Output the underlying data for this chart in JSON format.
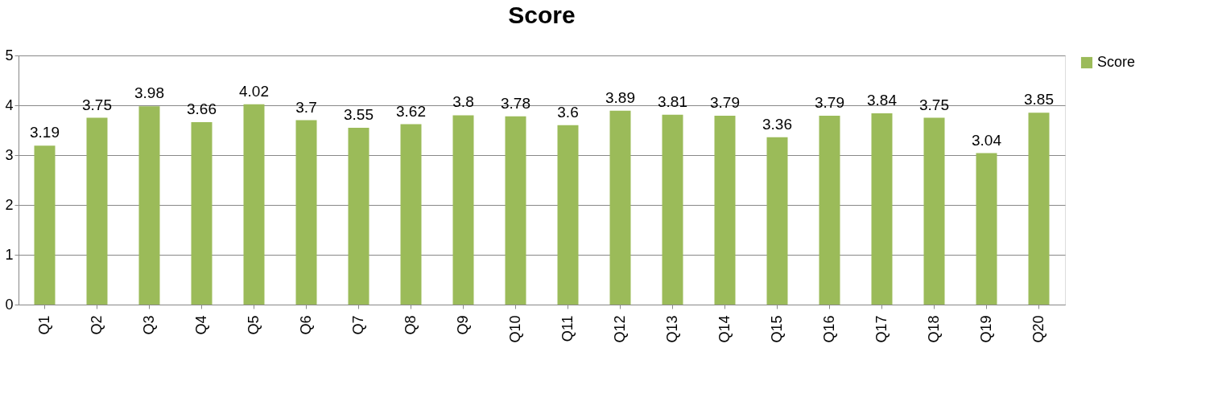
{
  "chart_data": {
    "type": "bar",
    "title": "Score",
    "categories": [
      "Q1",
      "Q2",
      "Q3",
      "Q4",
      "Q5",
      "Q6",
      "Q7",
      "Q8",
      "Q9",
      "Q10",
      "Q11",
      "Q12",
      "Q13",
      "Q14",
      "Q15",
      "Q16",
      "Q17",
      "Q18",
      "Q19",
      "Q20"
    ],
    "series": [
      {
        "name": "Score",
        "color": "#9bbb59",
        "values": [
          3.19,
          3.75,
          3.98,
          3.66,
          4.02,
          3.7,
          3.55,
          3.62,
          3.8,
          3.78,
          3.6,
          3.89,
          3.81,
          3.79,
          3.36,
          3.79,
          3.84,
          3.75,
          3.04,
          3.85
        ]
      }
    ],
    "ylim": [
      0,
      5
    ],
    "yticks": [
      0,
      1,
      2,
      3,
      4,
      5
    ],
    "grid": "y",
    "legend": "right",
    "data_labels": true
  }
}
